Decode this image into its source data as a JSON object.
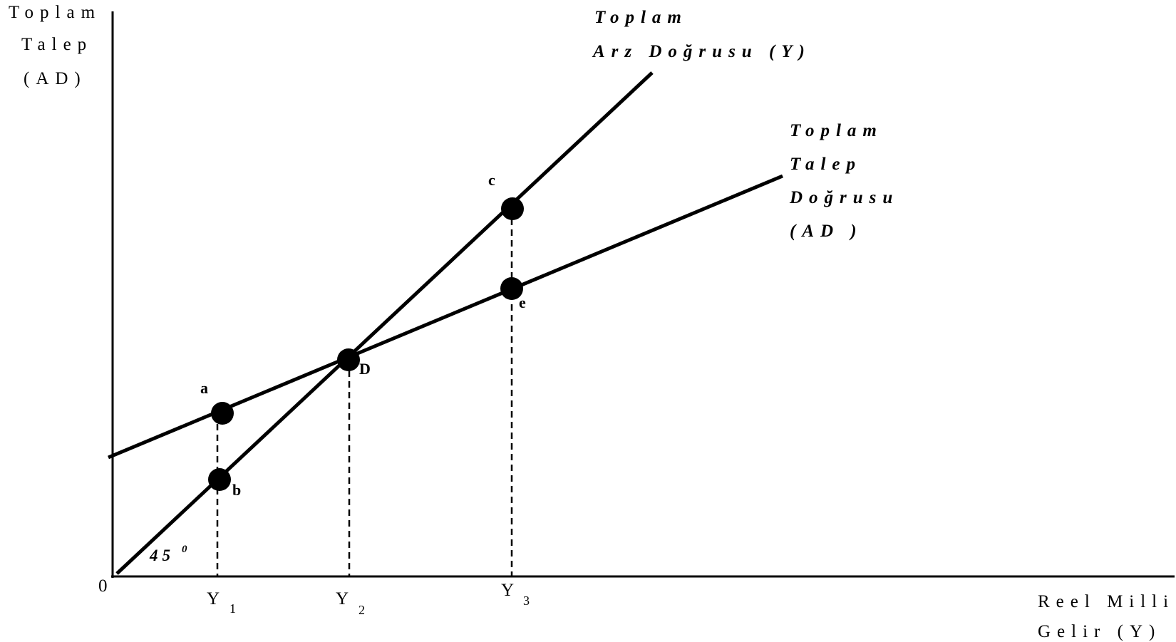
{
  "y_axis_label": {
    "line1": "Toplam",
    "line2": "Talep",
    "line3": "(AD)"
  },
  "x_axis_label": {
    "line1": "Reel Milli",
    "line2": "Gelir (Y)"
  },
  "origin_label": "0",
  "supply_line_label": {
    "line1": "Toplam",
    "line2": "Arz Doğrusu (Y)"
  },
  "demand_line_label": {
    "line1": "Toplam",
    "line2": "Talep",
    "line3": "Doğrusu",
    "line4": "(AD )"
  },
  "angle_label": {
    "value": "45",
    "superscript": "0"
  },
  "points": {
    "a": "a",
    "b": "b",
    "c": "c",
    "d": "D",
    "e": "e"
  },
  "x_ticks": [
    {
      "main": "Y",
      "sub": "1"
    },
    {
      "main": "Y",
      "sub": "2"
    },
    {
      "main": "Y",
      "sub": "3"
    }
  ]
}
